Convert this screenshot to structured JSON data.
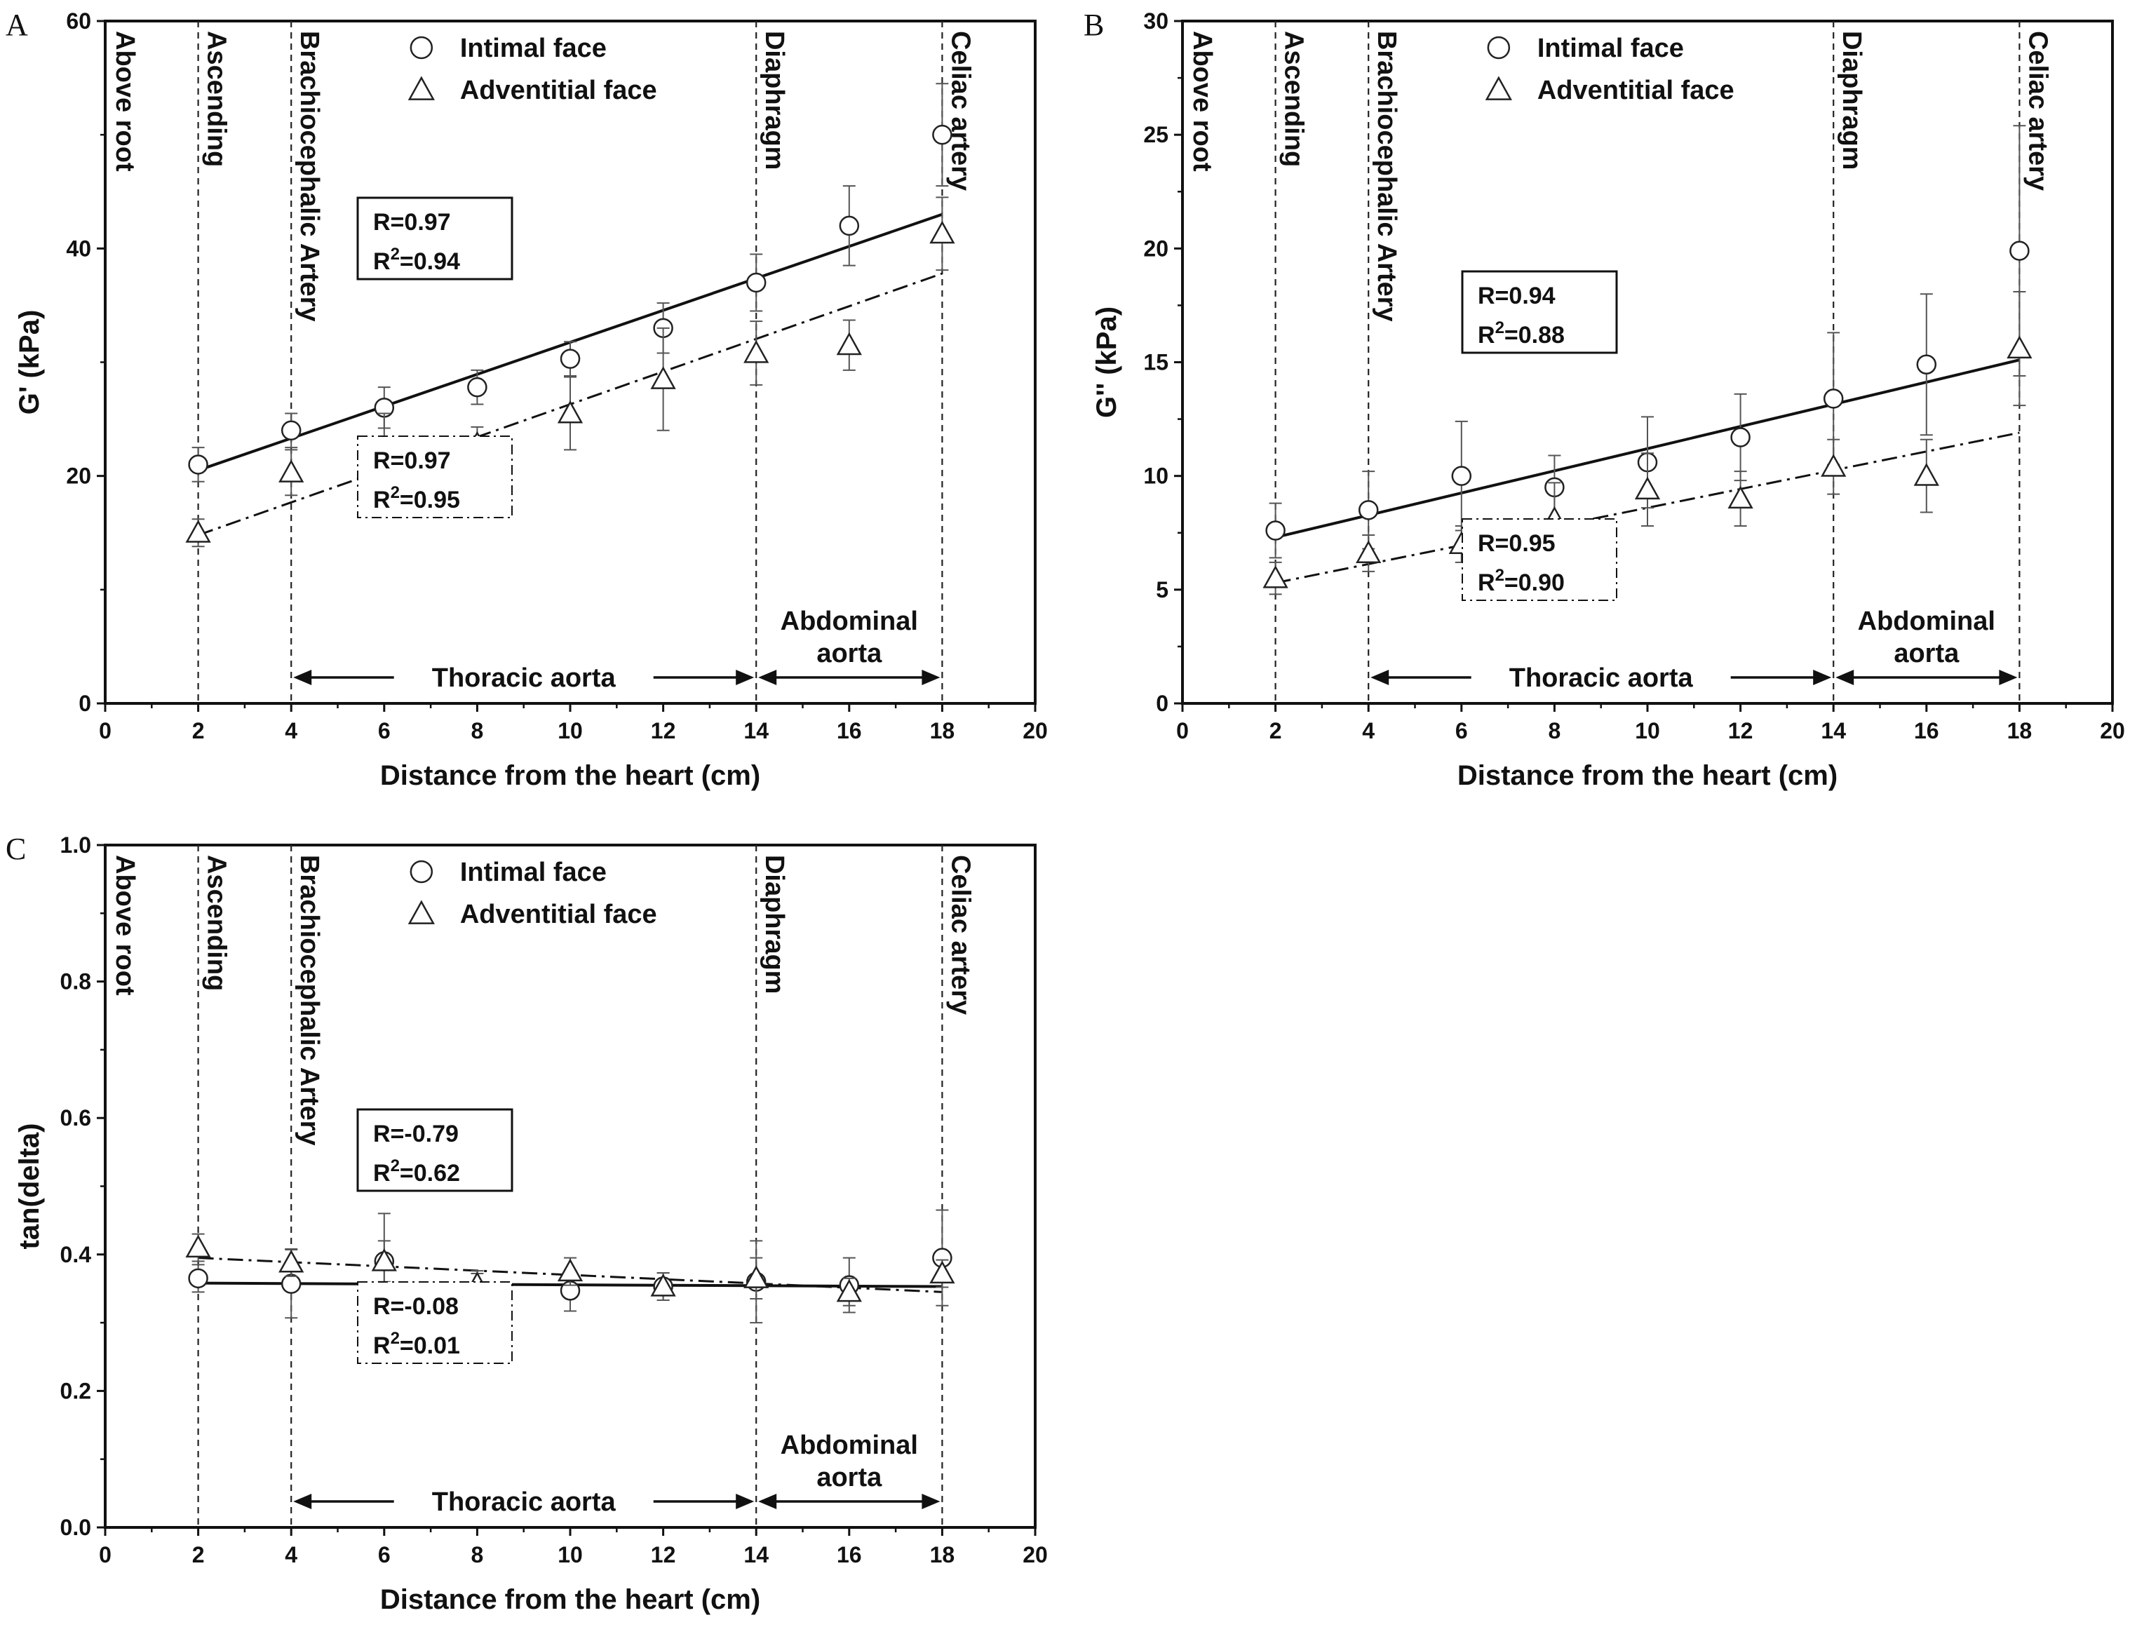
{
  "chart_data": [
    {
      "panel": "A",
      "type": "scatter",
      "xlabel": "Distance from the heart (cm)",
      "ylabel": "G' (kPa)",
      "xlim": [
        0,
        20
      ],
      "ylim": [
        0,
        60
      ],
      "x_ticks": [
        0,
        2,
        4,
        6,
        8,
        10,
        12,
        14,
        16,
        18,
        20
      ],
      "y_ticks": [
        0,
        20,
        40,
        60
      ],
      "series": [
        {
          "name": "Intimal face",
          "marker": "circle",
          "x": [
            2,
            4,
            6,
            8,
            10,
            12,
            14,
            16,
            18
          ],
          "y": [
            21,
            24,
            26,
            27.8,
            30.3,
            33,
            37,
            42,
            50
          ],
          "err": [
            1.5,
            1.5,
            1.8,
            1.5,
            1.5,
            2.2,
            2.5,
            3.5,
            4.5
          ]
        },
        {
          "name": "Adventitial face",
          "marker": "triangle",
          "x": [
            2,
            4,
            6,
            8,
            10,
            12,
            14,
            16,
            18
          ],
          "y": [
            15,
            20.3,
            22,
            22.8,
            25.5,
            28.5,
            30.8,
            31.5,
            41.3
          ],
          "err": [
            1.2,
            2,
            3.5,
            1.5,
            3.2,
            4.5,
            2.8,
            2.2,
            3.2
          ]
        }
      ],
      "fits": [
        {
          "series": "Intimal face",
          "style": "solid",
          "x": [
            2,
            18
          ],
          "y": [
            20.5,
            43
          ],
          "r_text": "R=0.97",
          "r2_text": "=0.94"
        },
        {
          "series": "Adventitial face",
          "style": "dashdot",
          "x": [
            2,
            18
          ],
          "y": [
            14.8,
            37.8
          ],
          "r_text": "R=0.97",
          "r2_text": "=0.95"
        }
      ],
      "vlines": [
        {
          "x": 0,
          "label": "Above root"
        },
        {
          "x": 2,
          "label": "Ascending"
        },
        {
          "x": 4,
          "label": "Brachiocephalic Artery"
        },
        {
          "x": 14,
          "label": "Diaphragm"
        },
        {
          "x": 18,
          "label": "Celiac artery"
        }
      ],
      "regions": [
        {
          "from": 4,
          "to": 14,
          "label": [
            "Thoracic aorta"
          ]
        },
        {
          "from": 14,
          "to": 18,
          "label": [
            "Abdominal",
            "aorta"
          ]
        }
      ]
    },
    {
      "panel": "B",
      "type": "scatter",
      "xlabel": "Distance from the heart (cm)",
      "ylabel": "G'' (kPa)",
      "xlim": [
        0,
        20
      ],
      "ylim": [
        0,
        30
      ],
      "x_ticks": [
        0,
        2,
        4,
        6,
        8,
        10,
        12,
        14,
        16,
        18,
        20
      ],
      "y_ticks": [
        0,
        5,
        10,
        15,
        20,
        25,
        30
      ],
      "series": [
        {
          "name": "Intimal face",
          "marker": "circle",
          "x": [
            2,
            4,
            6,
            8,
            10,
            12,
            14,
            16,
            18
          ],
          "y": [
            7.6,
            8.5,
            10,
            9.5,
            10.6,
            11.7,
            13.4,
            14.9,
            19.9
          ],
          "err": [
            1.2,
            1.7,
            2.4,
            1.4,
            2,
            1.9,
            2.9,
            3.1,
            5.5
          ]
        },
        {
          "name": "Adventitial face",
          "marker": "triangle",
          "x": [
            2,
            4,
            6,
            8,
            10,
            12,
            14,
            16,
            18
          ],
          "y": [
            5.5,
            6.6,
            7,
            8.1,
            9.4,
            9,
            10.4,
            10,
            15.6
          ],
          "err": [
            0.7,
            0.8,
            0.8,
            1.6,
            1.6,
            1.2,
            1.2,
            1.6,
            2.5
          ]
        }
      ],
      "fits": [
        {
          "series": "Intimal face",
          "style": "solid",
          "x": [
            2,
            18
          ],
          "y": [
            7.3,
            15.1
          ],
          "r_text": "R=0.94",
          "r2_text": "=0.88"
        },
        {
          "series": "Adventitial face",
          "style": "dashdot",
          "x": [
            2,
            18
          ],
          "y": [
            5.3,
            11.9
          ],
          "r_text": "R=0.95",
          "r2_text": "=0.90"
        }
      ],
      "vlines": [
        {
          "x": 0,
          "label": "Above root"
        },
        {
          "x": 2,
          "label": "Ascending"
        },
        {
          "x": 4,
          "label": "Brachiocephalic Artery"
        },
        {
          "x": 14,
          "label": "Diaphragm"
        },
        {
          "x": 18,
          "label": "Celiac artery"
        }
      ],
      "regions": [
        {
          "from": 4,
          "to": 14,
          "label": [
            "Thoracic aorta"
          ]
        },
        {
          "from": 14,
          "to": 18,
          "label": [
            "Abdominal",
            "aorta"
          ]
        }
      ]
    },
    {
      "panel": "C",
      "type": "scatter",
      "xlabel": "Distance from the heart (cm)",
      "ylabel": "tan(delta)",
      "xlim": [
        0,
        20
      ],
      "ylim": [
        0,
        1
      ],
      "x_ticks": [
        0,
        2,
        4,
        6,
        8,
        10,
        12,
        14,
        16,
        18,
        20
      ],
      "y_ticks": [
        0.0,
        0.2,
        0.4,
        0.6,
        0.8,
        1.0
      ],
      "series": [
        {
          "name": "Intimal face",
          "marker": "circle",
          "x": [
            2,
            4,
            6,
            8,
            10,
            12,
            14,
            16,
            18
          ],
          "y": [
            0.365,
            0.357,
            0.39,
            0.342,
            0.347,
            0.353,
            0.36,
            0.355,
            0.395
          ],
          "err": [
            0.02,
            0.05,
            0.07,
            0.03,
            0.03,
            0.02,
            0.06,
            0.04,
            0.07
          ]
        },
        {
          "name": "Adventitial face",
          "marker": "triangle",
          "x": [
            2,
            4,
            6,
            8,
            10,
            12,
            14,
            16,
            18
          ],
          "y": [
            0.41,
            0.388,
            0.39,
            0.356,
            0.375,
            0.353,
            0.365,
            0.345,
            0.372
          ],
          "err": [
            0.02,
            0.02,
            0.03,
            0.02,
            0.02,
            0.02,
            0.03,
            0.02,
            0.02
          ]
        }
      ],
      "fits": [
        {
          "series": "Intimal face",
          "style": "solid",
          "x": [
            2,
            18
          ],
          "y": [
            0.358,
            0.353
          ],
          "r_text": "R=-0.79",
          "r2_text": "=0.62"
        },
        {
          "series": "Adventitial face",
          "style": "dashdot",
          "x": [
            2,
            18
          ],
          "y": [
            0.395,
            0.345
          ],
          "r_text": "R=-0.08",
          "r2_text": "=0.01"
        }
      ],
      "vlines": [
        {
          "x": 0,
          "label": "Above root"
        },
        {
          "x": 2,
          "label": "Ascending"
        },
        {
          "x": 4,
          "label": "Brachiocephalic Artery"
        },
        {
          "x": 14,
          "label": "Diaphragm"
        },
        {
          "x": 18,
          "label": "Celiac artery"
        }
      ],
      "regions": [
        {
          "from": 4,
          "to": 14,
          "label": [
            "Thoracic aorta"
          ]
        },
        {
          "from": 14,
          "to": 18,
          "label": [
            "Abdominal",
            "aorta"
          ]
        }
      ]
    }
  ]
}
